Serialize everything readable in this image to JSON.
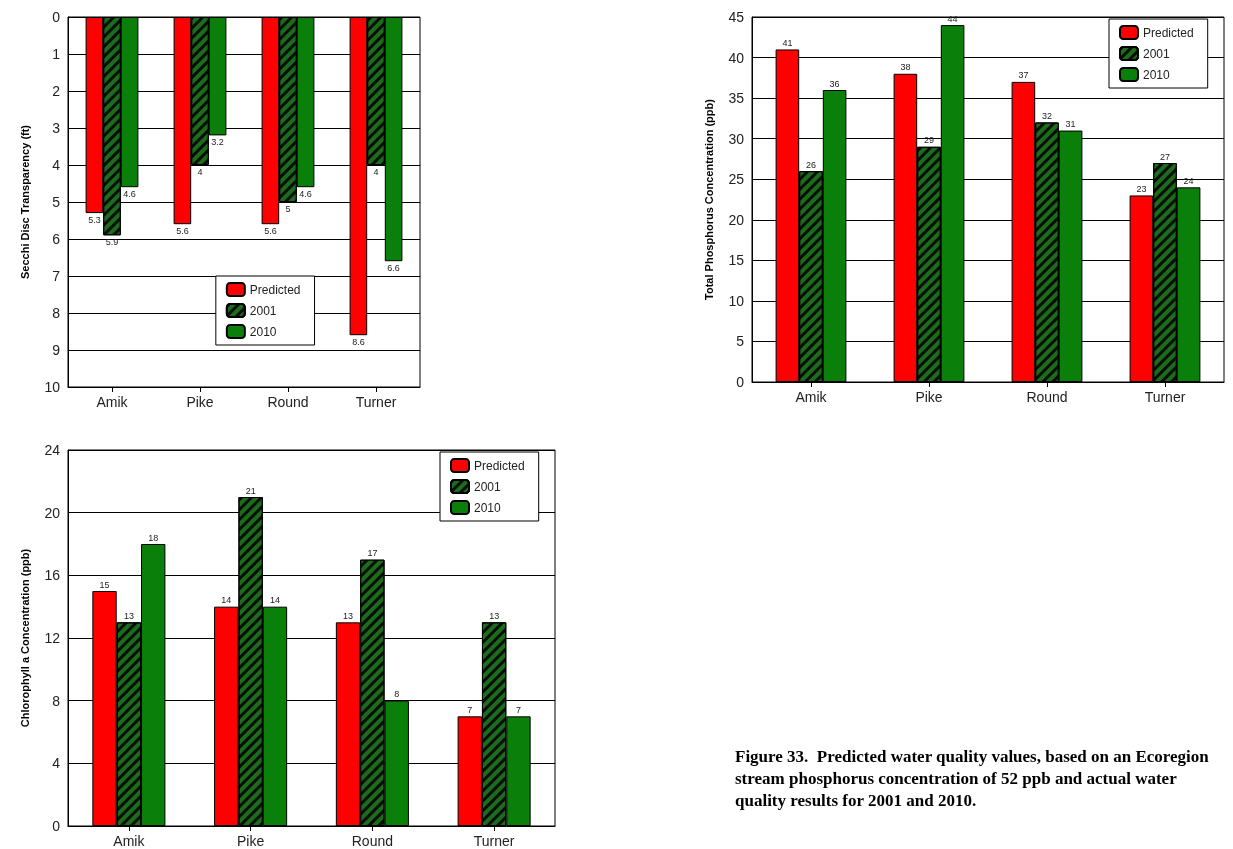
{
  "chart_data": [
    {
      "type": "bar",
      "ylabel": "Secchi Disc Transparency (ft)",
      "categories": [
        "Amik",
        "Pike",
        "Round",
        "Turner"
      ],
      "series": [
        {
          "name": "Predicted",
          "color": "#ff0000",
          "values": [
            5.3,
            5.6,
            5.6,
            8.6
          ]
        },
        {
          "name": "2001",
          "color": "#1e6b1e",
          "values": [
            5.9,
            4,
            5,
            4
          ]
        },
        {
          "name": "2010",
          "color": "#0a800a",
          "values": [
            4.6,
            3.2,
            4.6,
            6.6
          ]
        }
      ],
      "ylim": [
        10,
        0
      ],
      "yticks": [
        0,
        1,
        2,
        3,
        4,
        5,
        6,
        7,
        8,
        9,
        10
      ],
      "grid": "y",
      "legend": "bottom",
      "data_labels": true
    },
    {
      "type": "bar",
      "ylabel": "Total Phosphorus Concentration (ppb)",
      "categories": [
        "Amik",
        "Pike",
        "Round",
        "Turner"
      ],
      "series": [
        {
          "name": "Predicted",
          "color": "#ff0000",
          "values": [
            41,
            38,
            37,
            23
          ]
        },
        {
          "name": "2001",
          "color": "#1e6b1e",
          "values": [
            26,
            29,
            32,
            27
          ]
        },
        {
          "name": "2010",
          "color": "#0a800a",
          "values": [
            36,
            44,
            31,
            24
          ]
        }
      ],
      "ylim": [
        0,
        45
      ],
      "yticks": [
        0,
        5,
        10,
        15,
        20,
        25,
        30,
        35,
        40,
        45
      ],
      "grid": "y",
      "legend": "top right",
      "data_labels": true
    },
    {
      "type": "bar",
      "ylabel": "Chlorophyll a Concentration (ppb)",
      "categories": [
        "Amik",
        "Pike",
        "Round",
        "Turner"
      ],
      "series": [
        {
          "name": "Predicted",
          "color": "#ff0000",
          "values": [
            15,
            14,
            13,
            7
          ]
        },
        {
          "name": "2001",
          "color": "#1e6b1e",
          "values": [
            13,
            21,
            17,
            13
          ]
        },
        {
          "name": "2010",
          "color": "#0a800a",
          "values": [
            18,
            14,
            8,
            7
          ]
        }
      ],
      "ylim": [
        0,
        24
      ],
      "yticks": [
        0,
        4,
        8,
        12,
        16,
        20,
        24
      ],
      "grid": "y",
      "legend": "top right",
      "data_labels": true,
      "annotations": [
        "Figure 33.  Predicted water quality values, based on an Ecoregion stream phosphorus concentration of 52 ppb and actual water quality results for 2001 and 2010."
      ]
    }
  ]
}
